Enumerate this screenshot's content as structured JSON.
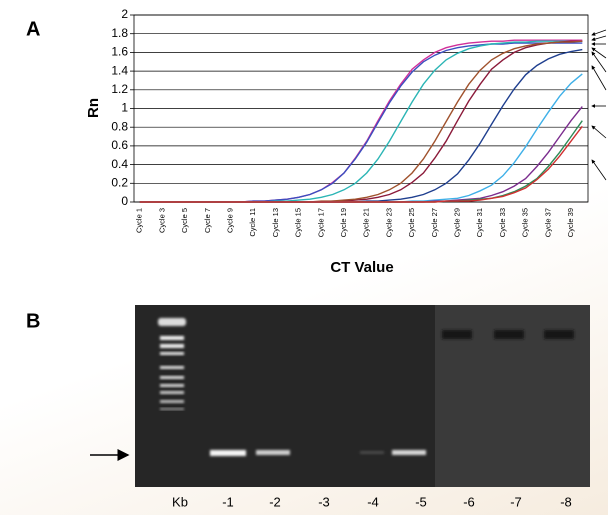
{
  "chart_data": {
    "type": "line",
    "panel_label": "A",
    "ylabel": "Rn",
    "xlabel": "CT Value",
    "categories": [
      "Cycle 1",
      null,
      "Cycle 3",
      null,
      "Cycle 5",
      null,
      "Cycle 7",
      null,
      "Cycle 9",
      null,
      "Cycle 11",
      null,
      "Cycle 13",
      null,
      "Cycle 15",
      null,
      "Cycle 17",
      null,
      "Cycle 19",
      null,
      "Cycle 21",
      null,
      "Cycle 23",
      null,
      "Cycle 25",
      null,
      "Cycle 27",
      null,
      "Cycle 29",
      null,
      "Cycle 31",
      null,
      "Cycle 33",
      null,
      "Cycle 35",
      null,
      "Cycle 37",
      null,
      "Cycle 39",
      null
    ],
    "ylim": [
      0,
      2
    ],
    "yticks": [
      0,
      0.2,
      0.4,
      0.6,
      0.8,
      1,
      1.2,
      1.4,
      1.6,
      1.8,
      2
    ],
    "grid": true,
    "series": [
      {
        "color": "#d12f9a",
        "values": [
          0,
          0,
          0,
          0,
          0,
          0,
          0,
          0,
          0,
          0,
          0.01,
          0.01,
          0.02,
          0.03,
          0.05,
          0.08,
          0.13,
          0.21,
          0.31,
          0.47,
          0.65,
          0.87,
          1.08,
          1.26,
          1.42,
          1.52,
          1.6,
          1.65,
          1.68,
          1.7,
          1.71,
          1.72,
          1.72,
          1.73,
          1.73,
          1.73,
          1.73,
          1.73,
          1.73,
          1.73
        ]
      },
      {
        "color": "#3b4fc0",
        "values": [
          0,
          0,
          0,
          0,
          0,
          0,
          0,
          0,
          0,
          0,
          0.01,
          0.01,
          0.02,
          0.03,
          0.05,
          0.08,
          0.13,
          0.2,
          0.31,
          0.46,
          0.64,
          0.85,
          1.06,
          1.24,
          1.39,
          1.5,
          1.57,
          1.62,
          1.65,
          1.67,
          1.68,
          1.69,
          1.69,
          1.7,
          1.7,
          1.7,
          1.7,
          1.7,
          1.7,
          1.7
        ]
      },
      {
        "color": "#2bb5b5",
        "values": [
          0,
          0,
          0,
          0,
          0,
          0,
          0,
          0,
          0,
          0,
          0,
          0,
          0.01,
          0.01,
          0.02,
          0.03,
          0.05,
          0.08,
          0.13,
          0.2,
          0.31,
          0.46,
          0.65,
          0.86,
          1.07,
          1.26,
          1.41,
          1.52,
          1.59,
          1.64,
          1.67,
          1.69,
          1.7,
          1.71,
          1.71,
          1.72,
          1.72,
          1.72,
          1.72,
          1.72
        ]
      },
      {
        "color": "#8b1a3a",
        "values": [
          0,
          0,
          0,
          0,
          0,
          0,
          0,
          0,
          0,
          0,
          0,
          0,
          0,
          0,
          0,
          0,
          0,
          0.01,
          0.01,
          0.02,
          0.03,
          0.05,
          0.08,
          0.13,
          0.21,
          0.31,
          0.47,
          0.65,
          0.87,
          1.08,
          1.26,
          1.42,
          1.52,
          1.6,
          1.65,
          1.68,
          1.7,
          1.71,
          1.72,
          1.72
        ]
      },
      {
        "color": "#a0522d",
        "values": [
          0,
          0,
          0,
          0,
          0,
          0,
          0,
          0,
          0,
          0,
          0,
          0,
          0,
          0,
          0,
          0,
          0.01,
          0.01,
          0.02,
          0.03,
          0.05,
          0.08,
          0.13,
          0.2,
          0.31,
          0.46,
          0.65,
          0.86,
          1.07,
          1.26,
          1.41,
          1.52,
          1.59,
          1.64,
          1.67,
          1.69,
          1.7,
          1.71,
          1.71,
          1.72
        ]
      },
      {
        "color": "#1f3f8f",
        "values": [
          0,
          0,
          0,
          0,
          0,
          0,
          0,
          0,
          0,
          0,
          0,
          0,
          0,
          0,
          0,
          0,
          0,
          0,
          0,
          0,
          0.01,
          0.01,
          0.02,
          0.03,
          0.05,
          0.08,
          0.13,
          0.2,
          0.3,
          0.45,
          0.63,
          0.83,
          1.03,
          1.21,
          1.36,
          1.46,
          1.53,
          1.58,
          1.61,
          1.63
        ]
      },
      {
        "color": "#3fb0e8",
        "values": [
          0,
          0,
          0,
          0,
          0,
          0,
          0,
          0,
          0,
          0,
          0,
          0,
          0,
          0,
          0,
          0,
          0,
          0,
          0,
          0,
          0,
          0,
          0,
          0,
          0.01,
          0.01,
          0.02,
          0.03,
          0.04,
          0.07,
          0.12,
          0.18,
          0.28,
          0.42,
          0.59,
          0.78,
          0.96,
          1.13,
          1.27,
          1.37
        ]
      },
      {
        "color": "#7b2d8e",
        "values": [
          0,
          0,
          0,
          0,
          0,
          0,
          0,
          0,
          0,
          0,
          0,
          0,
          0,
          0,
          0,
          0,
          0,
          0,
          0,
          0,
          0,
          0,
          0,
          0,
          0,
          0,
          0.01,
          0.01,
          0.02,
          0.03,
          0.04,
          0.07,
          0.11,
          0.17,
          0.25,
          0.38,
          0.53,
          0.7,
          0.87,
          1.02
        ]
      },
      {
        "color": "#2e8b57",
        "values": [
          0,
          0,
          0,
          0,
          0,
          0,
          0,
          0,
          0,
          0,
          0,
          0,
          0,
          0,
          0,
          0,
          0,
          0,
          0,
          0,
          0,
          0,
          0,
          0,
          0,
          0,
          0,
          0.01,
          0.01,
          0.02,
          0.03,
          0.04,
          0.07,
          0.11,
          0.17,
          0.25,
          0.38,
          0.53,
          0.7,
          0.87
        ]
      },
      {
        "color": "#d03030",
        "values": [
          0,
          0,
          0,
          0,
          0,
          0,
          0,
          0,
          0,
          0,
          0,
          0,
          0,
          0,
          0,
          0,
          0,
          0,
          0,
          0,
          0,
          0,
          0,
          0,
          0,
          0,
          0,
          0.01,
          0.01,
          0.01,
          0.02,
          0.04,
          0.06,
          0.1,
          0.15,
          0.24,
          0.35,
          0.49,
          0.65,
          0.81
        ]
      }
    ]
  },
  "gel": {
    "panel_label": "B",
    "lane_labels": [
      "Kb",
      "-1",
      "-2",
      "-3",
      "-4",
      "-5",
      "-6",
      "-7",
      "-8"
    ]
  }
}
